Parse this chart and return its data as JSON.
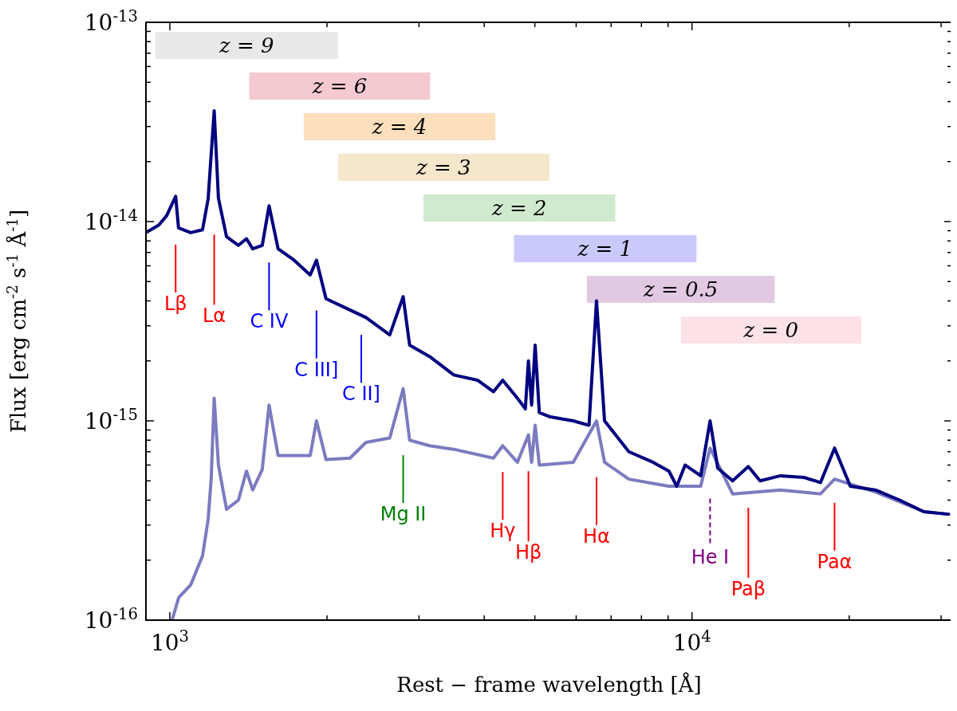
{
  "chart_data": {
    "type": "line",
    "log": "xy",
    "xlabel": "Rest − frame wavelength [Å]",
    "ylabel": "Flux [erg cm$^{-2}$ s$^{-1}$ Å$^{-1}$]",
    "xlim": [
      900,
      31500
    ],
    "ylim": [
      1e-16,
      1e-13
    ],
    "xticks": [
      {
        "value": 1000,
        "label": "10$^{3}$"
      },
      {
        "value": 2000,
        "label": null
      },
      {
        "value": 3000,
        "label": null
      },
      {
        "value": 4000,
        "label": null
      },
      {
        "value": 5000,
        "label": null
      },
      {
        "value": 6000,
        "label": null
      },
      {
        "value": 7000,
        "label": null
      },
      {
        "value": 8000,
        "label": null
      },
      {
        "value": 9000,
        "label": null
      },
      {
        "value": 10000,
        "label": "10$^{4}$"
      },
      {
        "value": 20000,
        "label": null
      },
      {
        "value": 30000,
        "label": null
      }
    ],
    "yticks": [
      {
        "value": 1e-16,
        "label": "10$^{-16}$"
      },
      {
        "value": 2e-16,
        "label": null
      },
      {
        "value": 3e-16,
        "label": null
      },
      {
        "value": 4e-16,
        "label": null
      },
      {
        "value": 5e-16,
        "label": null
      },
      {
        "value": 6e-16,
        "label": null
      },
      {
        "value": 7e-16,
        "label": null
      },
      {
        "value": 8e-16,
        "label": null
      },
      {
        "value": 9e-16,
        "label": null
      },
      {
        "value": 1e-15,
        "label": "10$^{-15}$"
      },
      {
        "value": 2e-15,
        "label": null
      },
      {
        "value": 3e-15,
        "label": null
      },
      {
        "value": 4e-15,
        "label": null
      },
      {
        "value": 5e-15,
        "label": null
      },
      {
        "value": 6e-15,
        "label": null
      },
      {
        "value": 7e-15,
        "label": null
      },
      {
        "value": 8e-15,
        "label": null
      },
      {
        "value": 9e-15,
        "label": null
      },
      {
        "value": 1e-14,
        "label": "10$^{-14}$"
      },
      {
        "value": 2e-14,
        "label": null
      },
      {
        "value": 3e-14,
        "label": null
      },
      {
        "value": 4e-14,
        "label": null
      },
      {
        "value": 5e-14,
        "label": null
      },
      {
        "value": 6e-14,
        "label": null
      },
      {
        "value": 7e-14,
        "label": null
      },
      {
        "value": 8e-14,
        "label": null
      },
      {
        "value": 9e-14,
        "label": null
      },
      {
        "value": 1e-13,
        "label": "10$^{-13}$"
      }
    ],
    "grid": false,
    "bands": [
      {
        "axis": "x",
        "from": 938,
        "to": 2100,
        "label": "z = 9",
        "color": "#e5e5e5"
      },
      {
        "axis": "x",
        "from": 1420,
        "to": 3150,
        "label": "z = 6",
        "color": "#f2c0c8"
      },
      {
        "axis": "x",
        "from": 1805,
        "to": 4200,
        "label": "z = 4",
        "color": "#fbd9b0"
      },
      {
        "axis": "x",
        "from": 2100,
        "to": 5330,
        "label": "z = 3",
        "color": "#f3e3c3"
      },
      {
        "axis": "x",
        "from": 3060,
        "to": 7130,
        "label": "z = 2",
        "color": "#c8e6c8"
      },
      {
        "axis": "x",
        "from": 4560,
        "to": 10200,
        "label": "z = 1",
        "color": "#c0c0fc"
      },
      {
        "axis": "x",
        "from": 6290,
        "to": 14400,
        "label": "z = 0.5",
        "color": "#ddbfdd"
      },
      {
        "axis": "x",
        "from": 9520,
        "to": 21100,
        "label": "z = 0",
        "color": "#fddde3"
      }
    ],
    "ref_lines": [
      {
        "axis": "x",
        "value": 1026,
        "label": "Lβ",
        "color": "#ff0000"
      },
      {
        "axis": "x",
        "value": 1216,
        "label": "Lα",
        "color": "#ff0000"
      },
      {
        "axis": "x",
        "value": 1549,
        "label": "C IV",
        "color": "#0000ff"
      },
      {
        "axis": "x",
        "value": 1909,
        "label": "C III]",
        "color": "#0000ff"
      },
      {
        "axis": "x",
        "value": 2326,
        "label": "C II]",
        "color": "#0000ff"
      },
      {
        "axis": "x",
        "value": 2798,
        "label": "Mg II",
        "color": "#008000"
      },
      {
        "axis": "x",
        "value": 4340,
        "label": "Hγ",
        "color": "#ff0000"
      },
      {
        "axis": "x",
        "value": 4861,
        "label": "Hβ",
        "color": "#ff0000"
      },
      {
        "axis": "x",
        "value": 6563,
        "label": "Hα",
        "color": "#ff0000"
      },
      {
        "axis": "x",
        "value": 10830,
        "label": "He I",
        "color": "#800080",
        "line_style": "dashed"
      },
      {
        "axis": "x",
        "value": 12820,
        "label": "Paβ",
        "color": "#ff0000"
      },
      {
        "axis": "x",
        "value": 18750,
        "label": "Paα",
        "color": "#ff0000"
      }
    ],
    "series": [
      {
        "color": "#7b7bc0",
        "x": [
          1010,
          1040,
          1096,
          1155,
          1184,
          1200,
          1216,
          1239,
          1284,
          1353,
          1402,
          1441,
          1503,
          1549,
          1612,
          1857,
          1909,
          1991,
          2213,
          2375,
          2637,
          2798,
          2879,
          3146,
          3497,
          4166,
          4340,
          4630,
          4861,
          4930,
          5007,
          5100,
          5923,
          6563,
          6800,
          7570,
          9030,
          10390,
          10830,
          11960,
          14770,
          17620,
          18750,
          22440,
          27800,
          31000
        ],
        "values": [
          1e-16,
          1.3e-16,
          1.5e-16,
          2.1e-16,
          3.2e-16,
          5.1e-16,
          1.3e-15,
          6e-16,
          3.6e-16,
          4e-16,
          5.6e-16,
          4.5e-16,
          5.7e-16,
          1.2e-15,
          6.7e-16,
          6.7e-16,
          1e-15,
          6.4e-16,
          6.5e-16,
          7.8e-16,
          8.2e-16,
          1.45e-15,
          8e-16,
          7.5e-16,
          7.2e-16,
          6.5e-16,
          7.5e-16,
          6.2e-16,
          8.5e-16,
          6.2e-16,
          9.5e-16,
          6e-16,
          6.2e-16,
          1e-15,
          6.2e-16,
          5.1e-16,
          4.7e-16,
          4.7e-16,
          7.3e-16,
          4.3e-16,
          4.5e-16,
          4.3e-16,
          5.1e-16,
          4.4e-16,
          3.5e-16,
          3.4e-16
        ]
      },
      {
        "color": "#000080",
        "x": [
          900,
          952,
          986,
          1026,
          1039,
          1096,
          1155,
          1184,
          1216,
          1239,
          1284,
          1353,
          1402,
          1441,
          1503,
          1549,
          1612,
          1730,
          1857,
          1909,
          1991,
          2213,
          2375,
          2637,
          2798,
          2879,
          3146,
          3497,
          3883,
          4166,
          4340,
          4630,
          4795,
          4861,
          4930,
          5007,
          5100,
          5330,
          5923,
          6350,
          6563,
          6800,
          7570,
          8420,
          9030,
          9350,
          9700,
          10390,
          10830,
          11200,
          11960,
          12820,
          13500,
          14770,
          16400,
          17620,
          18750,
          20100,
          22440,
          25000,
          27800,
          31000
        ],
        "values": [
          8.8e-15,
          9.6e-15,
          1.07e-14,
          1.34e-14,
          9.3e-15,
          8.8e-15,
          9.1e-15,
          1.3e-14,
          3.6e-14,
          1.31e-14,
          8.4e-15,
          7.6e-15,
          8.2e-15,
          7.3e-15,
          7.6e-15,
          1.2e-14,
          7.3e-15,
          6.4e-15,
          5.4e-15,
          6.4e-15,
          4.1e-15,
          3.6e-15,
          3.3e-15,
          2.7e-15,
          4.2e-15,
          2.4e-15,
          2.1e-15,
          1.7e-15,
          1.6e-15,
          1.4e-15,
          1.6e-15,
          1.3e-15,
          1.15e-15,
          2e-15,
          1.2e-15,
          2.4e-15,
          1.1e-15,
          1.05e-15,
          1e-15,
          9.5e-16,
          4e-15,
          1e-15,
          7e-16,
          6.2e-16,
          5.6e-16,
          4.7e-16,
          6e-16,
          5.3e-16,
          1e-15,
          5.8e-16,
          5e-16,
          5.9e-16,
          5e-16,
          5.3e-16,
          5.2e-16,
          4.9e-16,
          7.3e-16,
          4.7e-16,
          4.5e-16,
          4e-16,
          3.5e-16,
          3.4e-16
        ]
      }
    ]
  }
}
